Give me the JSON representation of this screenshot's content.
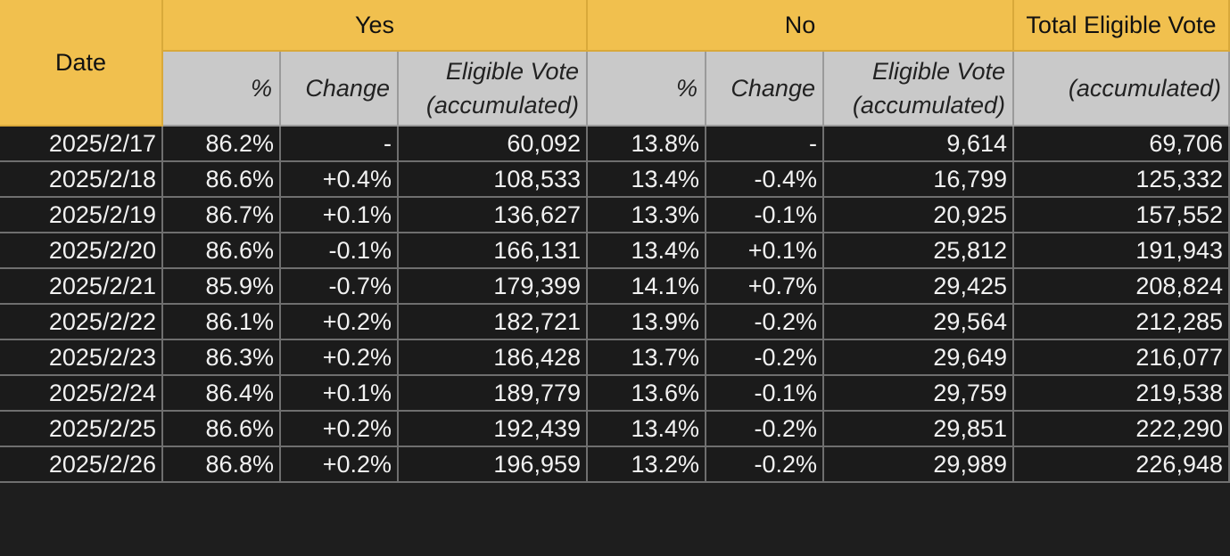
{
  "table": {
    "group_headers": [
      "Date",
      "Yes",
      "No",
      "Total Eligible Vote"
    ],
    "sub_headers": [
      [
        "%"
      ],
      [
        "Change"
      ],
      [
        "Eligible Vote",
        "(accumulated)"
      ],
      [
        "%"
      ],
      [
        "Change"
      ],
      [
        "Eligible Vote",
        "(accumulated)"
      ],
      [
        "(accumulated)"
      ]
    ],
    "rows": [
      [
        "2025/2/17",
        "86.2%",
        "-",
        "60,092",
        "13.8%",
        "-",
        "9,614",
        "69,706"
      ],
      [
        "2025/2/18",
        "86.6%",
        "+0.4%",
        "108,533",
        "13.4%",
        "-0.4%",
        "16,799",
        "125,332"
      ],
      [
        "2025/2/19",
        "86.7%",
        "+0.1%",
        "136,627",
        "13.3%",
        "-0.1%",
        "20,925",
        "157,552"
      ],
      [
        "2025/2/20",
        "86.6%",
        "-0.1%",
        "166,131",
        "13.4%",
        "+0.1%",
        "25,812",
        "191,943"
      ],
      [
        "2025/2/21",
        "85.9%",
        "-0.7%",
        "179,399",
        "14.1%",
        "+0.7%",
        "29,425",
        "208,824"
      ],
      [
        "2025/2/22",
        "86.1%",
        "+0.2%",
        "182,721",
        "13.9%",
        "-0.2%",
        "29,564",
        "212,285"
      ],
      [
        "2025/2/23",
        "86.3%",
        "+0.2%",
        "186,428",
        "13.7%",
        "-0.2%",
        "29,649",
        "216,077"
      ],
      [
        "2025/2/24",
        "86.4%",
        "+0.1%",
        "189,779",
        "13.6%",
        "-0.1%",
        "29,759",
        "219,538"
      ],
      [
        "2025/2/25",
        "86.6%",
        "+0.2%",
        "192,439",
        "13.4%",
        "-0.2%",
        "29,851",
        "222,290"
      ],
      [
        "2025/2/26",
        "86.8%",
        "+0.2%",
        "196,959",
        "13.2%",
        "-0.2%",
        "29,989",
        "226,948"
      ]
    ]
  }
}
